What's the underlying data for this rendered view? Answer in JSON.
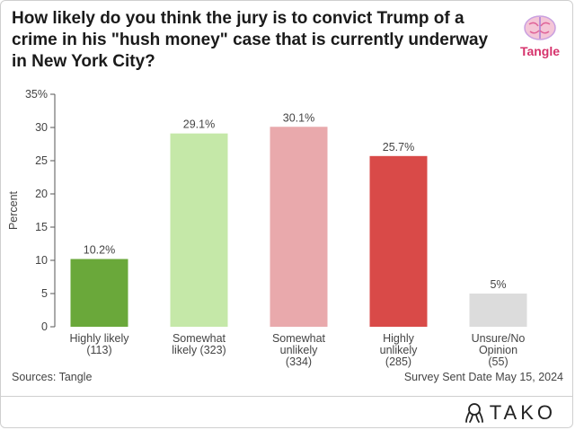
{
  "header": {
    "title": "How likely do you think the jury is to convict Trump of a crime in his \"hush money\" case that is currently underway in New York City?",
    "logo_text": "Tangle"
  },
  "footer": {
    "source": "Sources: Tangle",
    "date": "Survey Sent Date May 15, 2024",
    "brand": "TAKO"
  },
  "chart_data": {
    "type": "bar",
    "title": "How likely do you think the jury is to convict Trump of a crime in his \"hush money\" case that is currently underway in New York City?",
    "xlabel": "",
    "ylabel": "Percent",
    "ylim": [
      0,
      35
    ],
    "yticks": [
      0,
      5,
      10,
      15,
      20,
      25,
      30,
      35
    ],
    "ytick_labels": [
      "0",
      "5",
      "10",
      "15",
      "20",
      "25",
      "30",
      "35%"
    ],
    "grid": false,
    "categories": [
      [
        "Highly likely",
        "(113)"
      ],
      [
        "Somewhat",
        "likely (323)"
      ],
      [
        "Somewhat",
        "unlikely",
        "(334)"
      ],
      [
        "Highly",
        "unlikely",
        "(285)"
      ],
      [
        "Unsure/No",
        "Opinion",
        "(55)"
      ]
    ],
    "values": [
      10.2,
      29.1,
      30.1,
      25.7,
      5
    ],
    "value_labels": [
      "10.2%",
      "29.1%",
      "30.1%",
      "25.7%",
      "5%"
    ],
    "colors": [
      "#6aa83a",
      "#c5e8a8",
      "#e9a9ac",
      "#d94a48",
      "#dcdcdc"
    ]
  }
}
